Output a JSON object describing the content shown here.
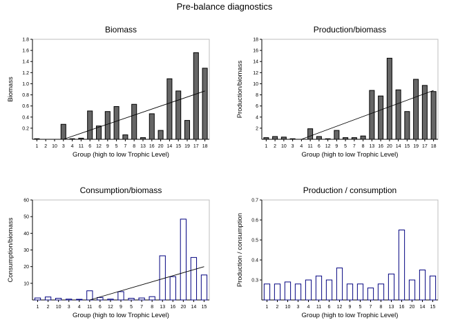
{
  "title": "Pre-balance diagnostics",
  "chart_data": [
    {
      "type": "bar",
      "title": "Biomass",
      "xlabel": "Group (high to low Trophic Level)",
      "ylabel": "Biomass",
      "categories": [
        "1",
        "2",
        "10",
        "3",
        "4",
        "11",
        "6",
        "12",
        "9",
        "5",
        "7",
        "8",
        "13",
        "16",
        "20",
        "14",
        "15",
        "19",
        "17",
        "18"
      ],
      "values": [
        0.01,
        0,
        0,
        0.27,
        0.01,
        0.02,
        0.51,
        0.24,
        0.5,
        0.59,
        0.08,
        0.63,
        0.03,
        0.46,
        0.16,
        1.09,
        0.87,
        0.34,
        1.56,
        1.28
      ],
      "ylim": [
        0,
        1.8
      ],
      "yticks": [
        "0.2",
        "0.4",
        "0.6",
        "0.8",
        "1.0",
        "1.2",
        "1.4",
        "1.6",
        "1.8"
      ],
      "trend": {
        "from": {
          "x": "3",
          "y": 0.0
        },
        "to": {
          "x": "18",
          "y": 0.87
        }
      },
      "bar_fill": "#666666",
      "bar_stroke": "#000000",
      "grid": false
    },
    {
      "type": "bar",
      "title": "Production/biomass",
      "xlabel": "Group (high to low Trophic Level)",
      "ylabel": "Production/biomass",
      "categories": [
        "1",
        "2",
        "10",
        "3",
        "4",
        "11",
        "6",
        "12",
        "9",
        "5",
        "7",
        "8",
        "13",
        "16",
        "20",
        "14",
        "15",
        "19",
        "17",
        "18"
      ],
      "values": [
        0.3,
        0.5,
        0.4,
        0.1,
        0,
        1.9,
        0.5,
        0.1,
        1.6,
        0.3,
        0.3,
        0.6,
        8.8,
        7.8,
        14.6,
        8.9,
        5.0,
        10.8,
        9.7,
        8.6
      ],
      "ylim": [
        0,
        18
      ],
      "yticks": [
        "2",
        "4",
        "6",
        "8",
        "10",
        "12",
        "14",
        "16",
        "18"
      ],
      "trend": {
        "from": {
          "x": "4",
          "y": 0.0
        },
        "to": {
          "x": "18",
          "y": 8.8
        }
      },
      "bar_fill": "#666666",
      "bar_stroke": "#000000",
      "grid": false
    },
    {
      "type": "bar",
      "title": "Consumption/biomass",
      "xlabel": "Group (high to low Trophic Level)",
      "ylabel": "Consumption/biomass",
      "categories": [
        "1",
        "2",
        "10",
        "3",
        "4",
        "11",
        "6",
        "12",
        "9",
        "5",
        "7",
        "8",
        "13",
        "16",
        "20",
        "14",
        "15"
      ],
      "values": [
        1.2,
        1.8,
        1.0,
        0.5,
        0.4,
        5.5,
        1.5,
        0.5,
        5.0,
        1.0,
        1.2,
        2.0,
        26.5,
        14.0,
        48.5,
        25.5,
        15.0
      ],
      "ylim": [
        0,
        60
      ],
      "yticks": [
        "10",
        "20",
        "30",
        "40",
        "50",
        "60"
      ],
      "trend": {
        "from": {
          "x": "11",
          "y": 0.0
        },
        "to": {
          "x": "15",
          "y": 20.0
        }
      },
      "bar_fill": "#ffffff",
      "bar_stroke": "#00007f",
      "grid": false
    },
    {
      "type": "bar",
      "title": "Production / consumption",
      "xlabel": "Group (high to low Trophic Level)",
      "ylabel": "Production / consumption",
      "categories": [
        "1",
        "2",
        "10",
        "3",
        "4",
        "11",
        "6",
        "12",
        "9",
        "5",
        "7",
        "8",
        "13",
        "16",
        "20",
        "14",
        "15"
      ],
      "values": [
        0.28,
        0.28,
        0.29,
        0.28,
        0.3,
        0.32,
        0.3,
        0.36,
        0.28,
        0.28,
        0.26,
        0.28,
        0.33,
        0.55,
        0.3,
        0.35,
        0.32
      ],
      "ylim": [
        0.2,
        0.7
      ],
      "yticks": [
        "0.3",
        "0.4",
        "0.5",
        "0.6",
        "0.7"
      ],
      "bar_fill": "#ffffff",
      "bar_stroke": "#00007f",
      "grid": false
    }
  ]
}
